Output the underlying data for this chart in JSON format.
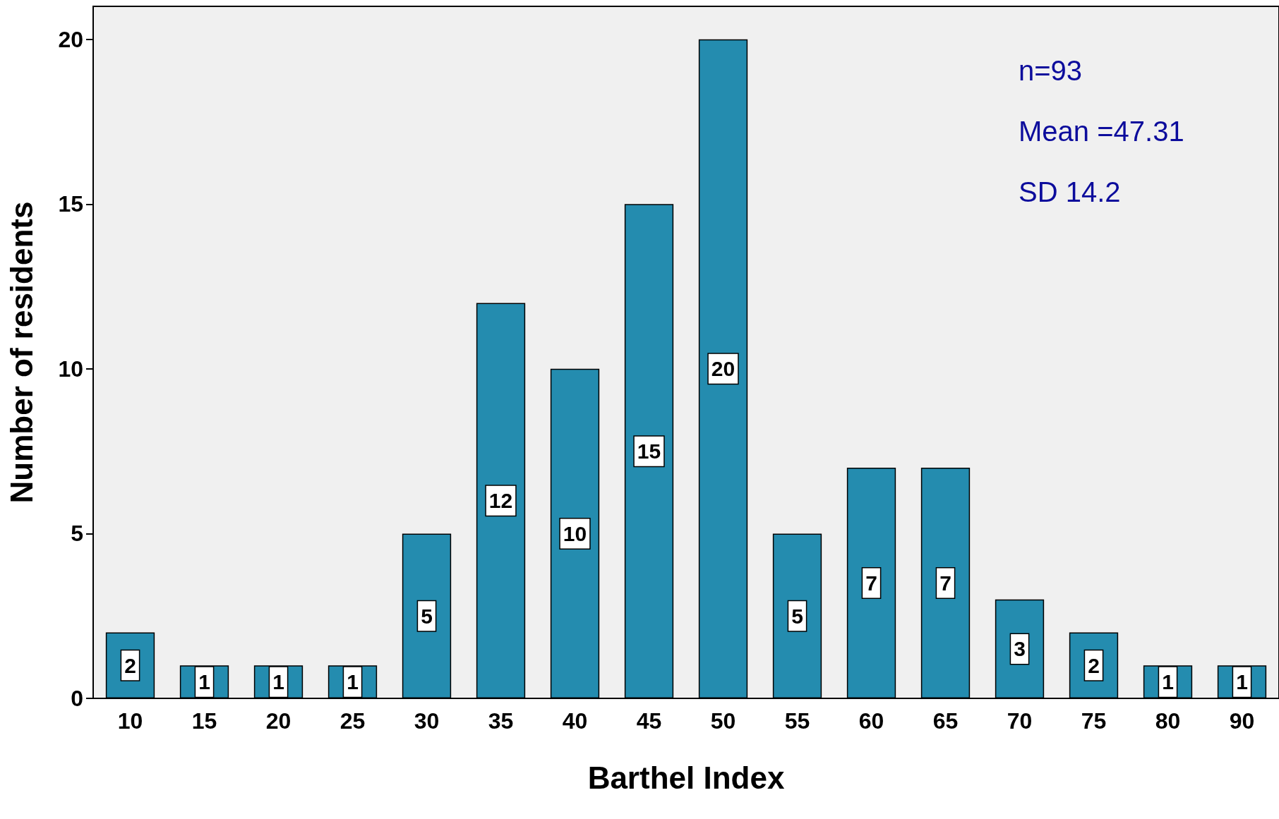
{
  "chart_data": {
    "type": "bar",
    "xlabel": "Barthel Index",
    "ylabel": "Number of residents",
    "categories": [
      "10",
      "15",
      "20",
      "25",
      "30",
      "35",
      "40",
      "45",
      "50",
      "55",
      "60",
      "65",
      "70",
      "75",
      "80",
      "90"
    ],
    "values": [
      2,
      1,
      1,
      1,
      5,
      12,
      10,
      15,
      20,
      5,
      7,
      7,
      3,
      2,
      1,
      1
    ],
    "color": "#248caf",
    "ylim": [
      0,
      21
    ],
    "yticks": [
      0,
      5,
      10,
      15,
      20
    ],
    "grid": false,
    "data_labels": true,
    "annotations": [
      "n=93",
      "Mean =47.31",
      "SD 14.2"
    ]
  }
}
